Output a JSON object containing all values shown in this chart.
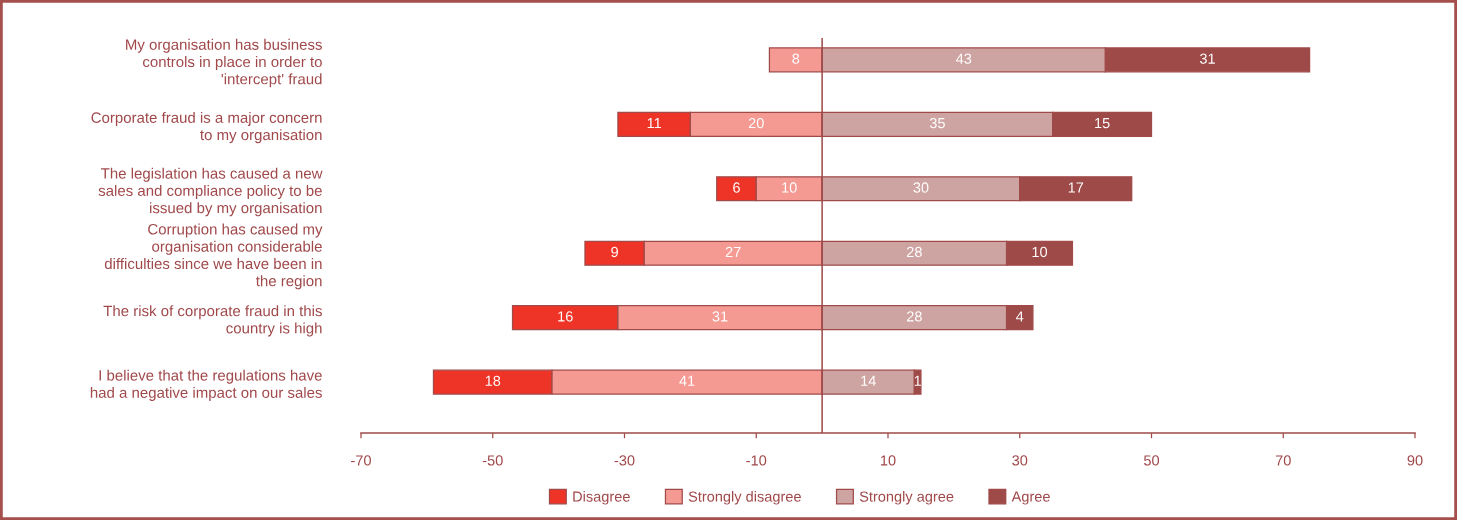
{
  "chart_data": {
    "type": "bar",
    "orientation": "horizontal",
    "legend": "bottom",
    "categories": [
      "My organisation has business\ncontrols in place in order to\n'intercept' fraud",
      "Corporate fraud is a major concern\nto my organisation",
      "The legislation has caused a new\nsales and compliance policy to be\nissued by my organisation",
      "Corruption has caused my\norganisation considerable\ndifficulties since we have been in\nthe region",
      "The risk of corporate fraud in this\ncountry is high",
      "I believe that the regulations have\nhad a negative impact on our sales"
    ],
    "series": [
      {
        "name": "Disagree",
        "color": "#ee3427",
        "values": [
          null,
          11,
          6,
          9,
          16,
          18
        ],
        "base": [
          null,
          -31,
          -16,
          -36,
          -47,
          -59
        ]
      },
      {
        "name": "Strongly disagree",
        "color": "#f59a93",
        "values": [
          8,
          20,
          10,
          27,
          31,
          41
        ],
        "base": [
          -8,
          -20,
          -10,
          -27,
          -31,
          -41
        ]
      },
      {
        "name": "Strongly agree",
        "color": "#cea4a2",
        "values": [
          43,
          35,
          30,
          28,
          28,
          14
        ],
        "base": [
          0,
          0,
          0,
          0,
          0,
          0
        ]
      },
      {
        "name": "Agree",
        "color": "#9e4a48",
        "values": [
          31,
          15,
          17,
          10,
          4,
          1
        ],
        "base": [
          43,
          35,
          30,
          28,
          28,
          14
        ]
      }
    ],
    "data_labels": true,
    "ref_lines": [
      {
        "axis": "x",
        "value": 0
      }
    ],
    "xlim": [
      -70,
      90
    ],
    "xticks": [
      -70,
      -50,
      -30,
      -10,
      10,
      30,
      50,
      70,
      90
    ]
  }
}
